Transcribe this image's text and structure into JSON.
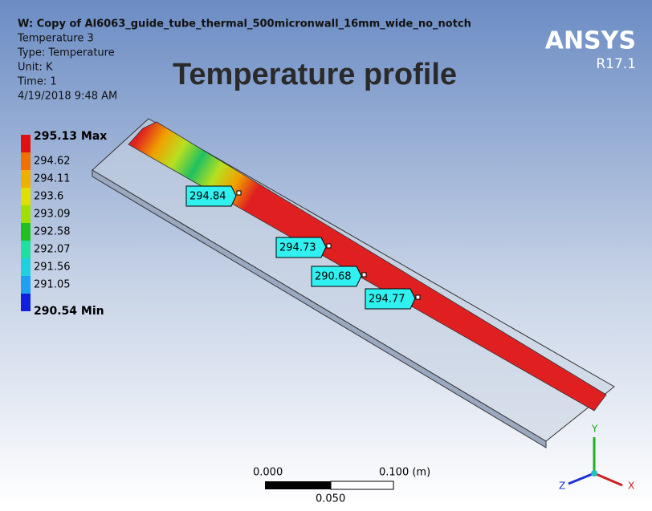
{
  "header": {
    "lines": [
      "W: Copy of Al6063_guide_tube_thermal_500micronwall_16mm_wide_no_notch",
      "Temperature 3",
      "Type: Temperature",
      "Unit: K",
      "Time: 1",
      "4/19/2018 9:48 AM"
    ]
  },
  "title": "Temperature profile",
  "logo": {
    "name": "ANSYS",
    "version": "R17.1"
  },
  "legend": {
    "labels": [
      "295.13 Max",
      "294.62",
      "294.11",
      "293.6",
      "293.09",
      "292.58",
      "292.07",
      "291.56",
      "291.05",
      "290.54 Min"
    ]
  },
  "probes": [
    "294.84",
    "294.73",
    "290.68",
    "294.77"
  ],
  "scale_bar": {
    "left": "0.000",
    "right": "0.100 (m)",
    "middle": "0.050"
  },
  "triad": {
    "y": "Y",
    "z": "Z",
    "x": "X"
  }
}
